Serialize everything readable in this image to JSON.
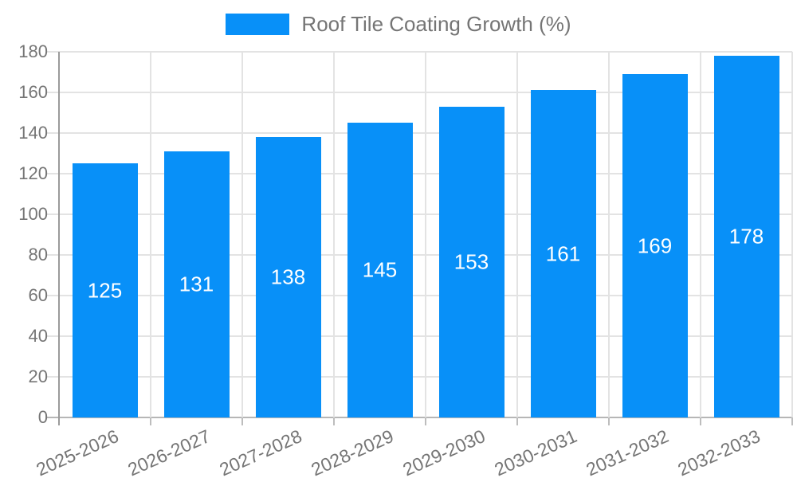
{
  "chart_data": {
    "type": "bar",
    "title": "Roof Tile Coating Growth (%)",
    "categories": [
      "2025-2026",
      "2026-2027",
      "2027-2028",
      "2028-2029",
      "2029-2030",
      "2030-2031",
      "2031-2032",
      "2032-2033"
    ],
    "values": [
      125,
      131,
      138,
      145,
      153,
      161,
      169,
      178
    ],
    "series": [
      {
        "name": "Roof Tile Coating Growth (%)",
        "values": [
          125,
          131,
          138,
          145,
          153,
          161,
          169,
          178
        ]
      }
    ],
    "data_labels": [
      "125",
      "131",
      "138",
      "145",
      "153",
      "161",
      "169",
      "178"
    ],
    "ylim": [
      0,
      180
    ],
    "yticks": [
      0,
      20,
      40,
      60,
      80,
      100,
      120,
      140,
      160,
      180
    ],
    "ytick_labels": [
      "0",
      "20",
      "40",
      "60",
      "80",
      "100",
      "120",
      "140",
      "160",
      "180"
    ],
    "xlabel": "",
    "ylabel": "",
    "grid": true,
    "legend_position": "top",
    "colors": {
      "bar": "#0890f8",
      "data_label": "#ffffff",
      "axis_text": "#757575",
      "legend_text": "#757575",
      "gridline": "#e3e3e3",
      "baseline": "#b6b6b6",
      "axis_line": "#9b9b9b",
      "tick": "#bdbdbd",
      "background": "#ffffff"
    }
  }
}
